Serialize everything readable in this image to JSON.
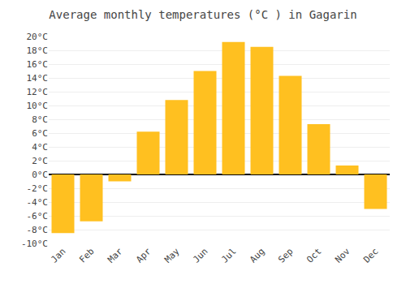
{
  "chart_data": {
    "type": "bar",
    "title": "Average monthly temperatures (°C ) in Gagarin",
    "categories": [
      "Jan",
      "Feb",
      "Mar",
      "Apr",
      "May",
      "Jun",
      "Jul",
      "Aug",
      "Sep",
      "Oct",
      "Nov",
      "Dec"
    ],
    "values": [
      -8.5,
      -6.8,
      -1.0,
      6.2,
      10.8,
      15.0,
      19.2,
      18.5,
      14.3,
      7.3,
      1.3,
      -5.0
    ],
    "color": "#FFC020",
    "ylim": [
      -10,
      20
    ],
    "yticks": [
      {
        "value": -10,
        "label": "-10°C"
      },
      {
        "value": -8,
        "label": "-8°C"
      },
      {
        "value": -6,
        "label": "-6°C"
      },
      {
        "value": -4,
        "label": "-4°C"
      },
      {
        "value": -2,
        "label": "-2°C"
      },
      {
        "value": 0,
        "label": "0°C"
      },
      {
        "value": 2,
        "label": "2°C"
      },
      {
        "value": 4,
        "label": "4°C"
      },
      {
        "value": 6,
        "label": "6°C"
      },
      {
        "value": 8,
        "label": "8°C"
      },
      {
        "value": 10,
        "label": "10°C"
      },
      {
        "value": 12,
        "label": "12°C"
      },
      {
        "value": 14,
        "label": "14°C"
      },
      {
        "value": 16,
        "label": "16°C"
      },
      {
        "value": 18,
        "label": "18°C"
      },
      {
        "value": 20,
        "label": "20°C"
      }
    ],
    "grid": true
  }
}
